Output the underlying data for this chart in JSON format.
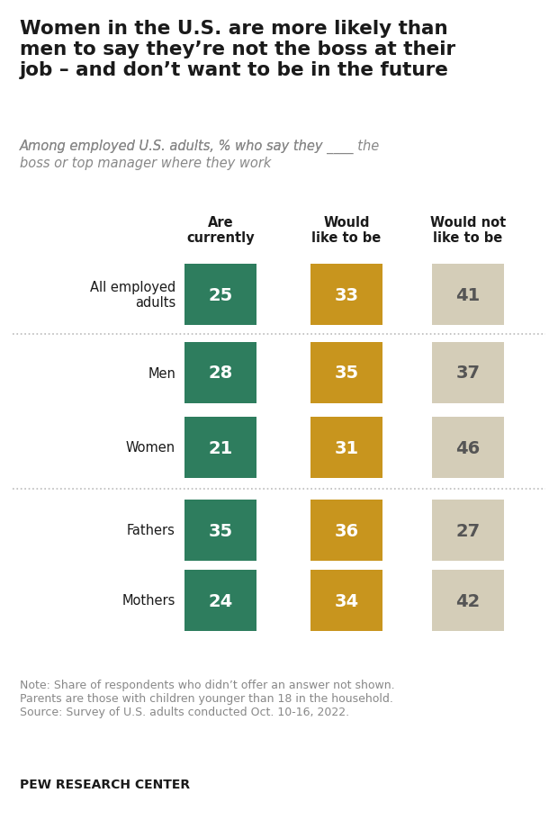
{
  "title": "Women in the U.S. are more likely than\nmen to say they’re not the boss at their\njob – and don’t want to be in the future",
  "subtitle_part1": "Among employed U.S. adults, % who say they ",
  "subtitle_blank": "____",
  "subtitle_part2": " the\nboss or top manager where they work",
  "categories": [
    "All employed\nadults",
    "Men",
    "Women",
    "Fathers",
    "Mothers"
  ],
  "col_headers": [
    "Are\ncurrently",
    "Would\nlike to be",
    "Would not\nlike to be"
  ],
  "values": [
    [
      25,
      33,
      41
    ],
    [
      28,
      35,
      37
    ],
    [
      21,
      31,
      46
    ],
    [
      35,
      36,
      27
    ],
    [
      24,
      34,
      42
    ]
  ],
  "bar_colors": [
    "#2e7d5e",
    "#c8951e",
    "#d4cdb8"
  ],
  "text_colors_dark": [
    "#ffffff",
    "#ffffff",
    "#555555"
  ],
  "note": "Note: Share of respondents who didn’t offer an answer not shown.\nParents are those with children younger than 18 in the household.\nSource: Survey of U.S. adults conducted Oct. 10-16, 2022.",
  "footer": "PEW RESEARCH CENTER",
  "title_color": "#1a1a1a",
  "subtitle_color": "#888888",
  "note_color": "#888888",
  "background_color": "#ffffff",
  "sep_color": "#bbbbbb",
  "col_header_color": "#1a1a1a"
}
